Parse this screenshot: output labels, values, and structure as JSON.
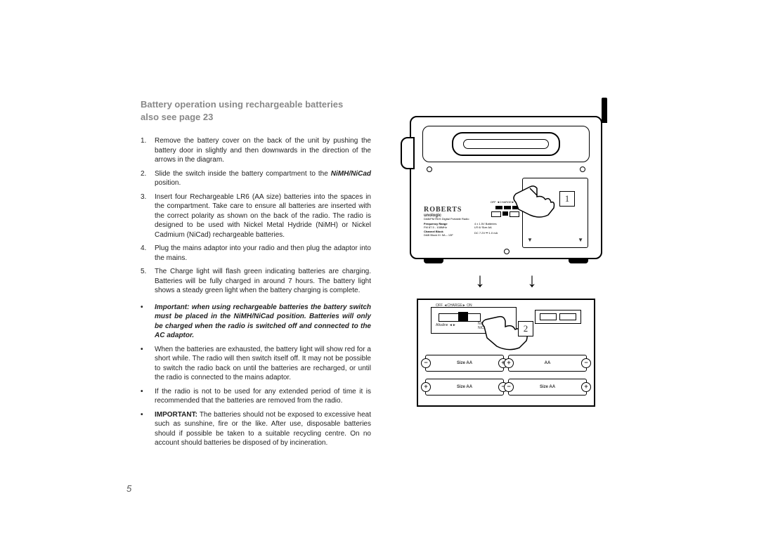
{
  "page_number": "5",
  "title_line1": "Battery operation using rechargeable batteries",
  "title_line2": "also see page 23",
  "ol": [
    "Remove the battery cover on the back of the unit by pushing the battery door in slightly and then downwards in the direction of the arrows in the diagram.",
    "Slide the switch inside the battery compartment to the <span class='bi'>NiMH/NiCad</span> position.",
    "Insert four Rechargeable LR6 (AA size) batteries into the spaces in the compartment. Take care to ensure all batteries are inserted with the correct polarity as shown on the back of the radio. The radio is designed to be used with Nickel Metal Hydride (NiMH) or Nickel Cadmium (NiCad) rechargeable batteries.",
    "Plug the mains adaptor into your radio and then plug the adaptor into the mains.",
    "The Charge light will flash green indicating batteries are charging. Batteries will be fully charged in around 7 hours. The battery light shows a steady green light when the battery charging is complete."
  ],
  "ul": [
    "<span class='bi'>Important: when using rechargeable batteries the battery switch must be placed in the NiMH/NiCad position. Batteries will only be charged when the radio is switched off and connected to the AC adaptor.</span>",
    "When the batteries are exhausted, the battery light will show red for a short while. The radio will then switch itself off. It may not be possible to switch the radio back on until the batteries are recharged, or until the radio is connected to the mains adaptor.",
    "If the radio is not to be used for any extended period of time it is recommended that the batteries are removed from the radio.",
    "<span class='b'>IMPORTANT:</span> The batteries should not be exposed to excessive heat such as sunshine, fire or the like. After use, disposable batteries should if possible be taken to a suitable recycling centre. On no account should batteries be disposed of by incineration."
  ],
  "diagram": {
    "callout1": "1",
    "callout2": "2",
    "brand": "ROBERTS",
    "subbrand": "unologic",
    "desc": "DAB/FM RDS Digital Portable Radio",
    "freq_head": "Frequency Range",
    "freq_body": "FM 87.5 - 108MHz",
    "chan_head": "Channel Block",
    "chan_body": "DAB Block III: 5A – 13F",
    "batt_text": "4 x 1.5V Batteries\nLR 6/ Size AA",
    "dc_text": "DC 7.2V ⎓ 1.0 mA",
    "switch_top": "OFF ◄CHARGE► ON",
    "switch_bottom_left": "Alkaline ◄►",
    "switch_bottom_right": "NiMH\nNiCad",
    "size_label": "Size AA",
    "aa_label": "AA"
  }
}
